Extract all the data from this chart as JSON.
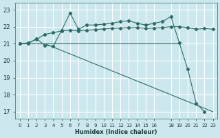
{
  "background_color": "#cce8ee",
  "grid_color": "#ffffff",
  "line_color": "#2e6b65",
  "xlabel": "Humidex (Indice chaleur)",
  "ylim": [
    16.6,
    23.4
  ],
  "xlim": [
    -0.5,
    23.5
  ],
  "yticks": [
    17,
    18,
    19,
    20,
    21,
    22,
    23
  ],
  "xticks": [
    0,
    1,
    2,
    3,
    4,
    5,
    6,
    7,
    8,
    9,
    10,
    11,
    12,
    13,
    14,
    15,
    16,
    18,
    19,
    20,
    21,
    22,
    23
  ],
  "lines": [
    {
      "x": [
        0,
        1,
        2,
        3,
        4,
        5,
        6,
        7,
        8,
        9,
        10,
        11,
        12,
        13,
        14,
        15,
        16,
        17,
        18,
        19,
        20,
        21,
        22,
        23
      ],
      "y": [
        21.0,
        21.0,
        21.3,
        20.9,
        20.85,
        21.8,
        22.8,
        21.85,
        22.1,
        22.1,
        22.15,
        22.2,
        22.3,
        22.35,
        22.2,
        22.1,
        22.2,
        22.3,
        22.6,
        21.05,
        19.5,
        17.5,
        17.0,
        null
      ],
      "marker": true
    },
    {
      "x": [
        0,
        1,
        2,
        3,
        4,
        5,
        6,
        7,
        8,
        9,
        10,
        11,
        12,
        13,
        14,
        15,
        16,
        17,
        18,
        19,
        20,
        21,
        22,
        23
      ],
      "y": [
        21.0,
        21.05,
        21.25,
        21.55,
        21.65,
        21.75,
        21.8,
        21.75,
        21.8,
        21.82,
        21.88,
        21.9,
        21.92,
        21.95,
        21.95,
        21.9,
        21.92,
        21.95,
        22.0,
        22.0,
        21.95,
        21.85,
        21.9,
        21.85
      ],
      "marker": true
    },
    {
      "x": [
        0,
        3,
        19
      ],
      "y": [
        21.0,
        21.0,
        21.0
      ],
      "marker": false
    },
    {
      "x": [
        3,
        23
      ],
      "y": [
        21.0,
        17.0
      ],
      "marker": false
    }
  ]
}
